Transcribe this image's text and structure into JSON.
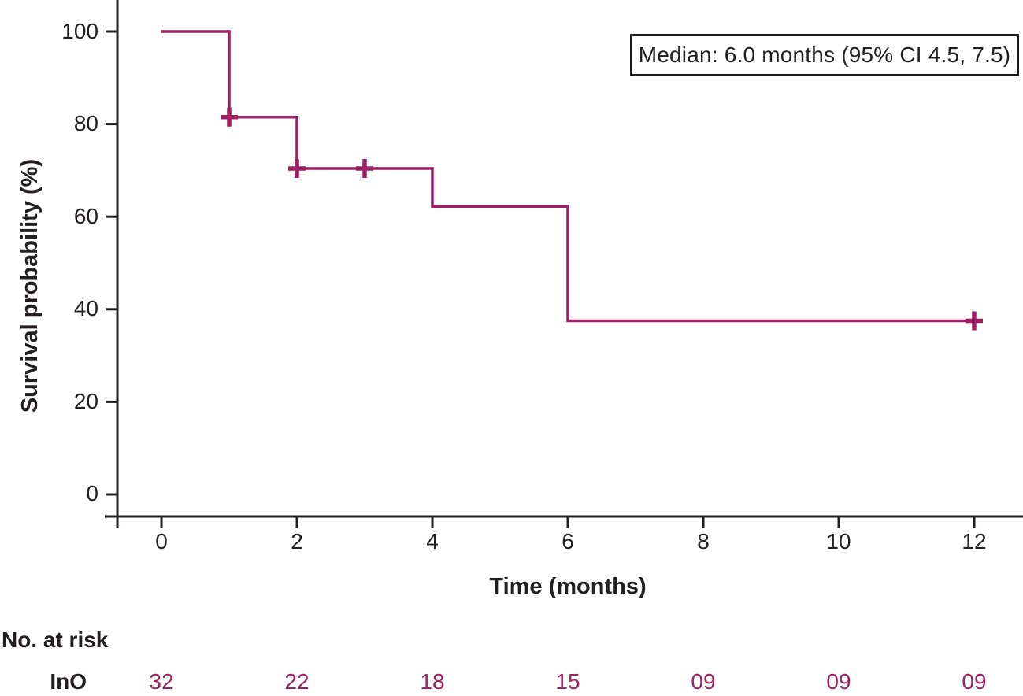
{
  "chart_data": {
    "type": "line",
    "subtype": "kaplan-meier-step-curve",
    "title": "",
    "xlabel": "Time (months)",
    "ylabel": "Survival probability (%)",
    "xlim": [
      0,
      12.7
    ],
    "ylim": [
      0,
      100
    ],
    "grid": false,
    "legend_position": "none",
    "x_ticks": [
      0,
      2,
      4,
      6,
      8,
      10,
      12
    ],
    "x_tick_labels": [
      "0",
      "2",
      "4",
      "6",
      "8",
      "10",
      "12"
    ],
    "y_ticks": [
      100,
      80,
      60,
      40,
      20,
      0
    ],
    "y_tick_labels": [
      "100",
      "80",
      "60",
      "40",
      "20",
      "0"
    ],
    "annotation": "Median: 6.0 months (95% CI 4.5, 7.5)",
    "series": [
      {
        "name": "InO",
        "steps": [
          {
            "t": 0,
            "s": 100
          },
          {
            "t": 1,
            "s": 81.5
          },
          {
            "t": 2,
            "s": 70.4
          },
          {
            "t": 4,
            "s": 62.2
          },
          {
            "t": 6,
            "s": 37.5
          }
        ],
        "end_t": 12,
        "censors": [
          {
            "t": 1,
            "s": 81.5
          },
          {
            "t": 2,
            "s": 70.4
          },
          {
            "t": 3,
            "s": 70.4
          },
          {
            "t": 12,
            "s": 37.5
          }
        ]
      }
    ],
    "at_risk": {
      "header": "No. at risk",
      "group_label": "InO",
      "times": [
        0,
        2,
        4,
        6,
        8,
        10,
        12
      ],
      "values": [
        "32",
        "22",
        "18",
        "15",
        "09",
        "09",
        "09"
      ]
    },
    "colors": {
      "curve": "#9e1f63",
      "axis": "#231f20",
      "text": "#231f20"
    }
  }
}
